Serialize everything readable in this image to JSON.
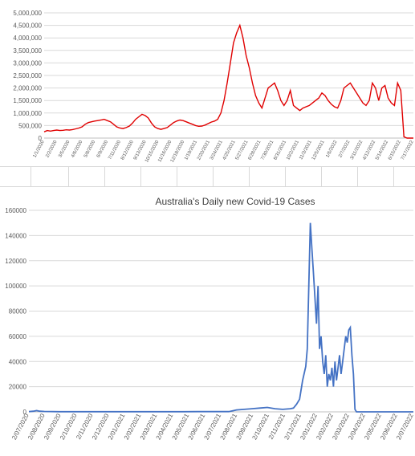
{
  "charts": [
    {
      "chart_data": {
        "type": "line",
        "title": "",
        "xlabel": "",
        "ylabel": "",
        "ylim": [
          0,
          5000000
        ],
        "y_ticks": [
          "0",
          "500,000",
          "1,000,000",
          "1,500,000",
          "2,000,000",
          "2,500,000",
          "3,000,000",
          "3,500,000",
          "4,000,000",
          "4,500,000",
          "5,000,000"
        ],
        "x_ticks": [
          "1/1/2020",
          "2/2/2020",
          "3/5/2020",
          "4/6/2020",
          "5/8/2020",
          "6/9/2020",
          "7/11/2020",
          "8/12/2020",
          "9/13/2020",
          "10/15/2020",
          "11/16/2020",
          "12/18/2020",
          "1/19/2021",
          "2/20/2021",
          "3/24/2021",
          "4/25/2021",
          "5/27/2021",
          "6/28/2021",
          "7/30/2021",
          "8/31/2021",
          "10/2/2021",
          "11/3/2021",
          "12/5/2021",
          "1/6/2022",
          "2/7/2022",
          "3/11/2022",
          "4/12/2022",
          "5/14/2022",
          "6/15/2022",
          "7/17/2022"
        ],
        "grid": true,
        "legend": "none",
        "color": "#e00000",
        "series": [
          {
            "x": [
              0,
              8,
              16,
              24,
              32,
              40,
              48,
              56,
              64,
              72,
              80,
              88,
              96,
              104,
              112,
              120,
              128,
              136,
              144,
              152,
              160,
              168,
              176,
              184,
              192,
              200,
              208,
              216,
              224,
              232,
              240,
              248,
              256,
              264,
              272,
              280,
              288,
              296,
              304,
              312,
              320,
              328,
              336,
              344,
              352,
              360,
              368,
              376,
              384,
              392,
              400,
              408,
              416,
              424,
              432,
              440,
              448,
              456,
              464,
              472,
              480,
              488,
              496,
              504,
              512,
              520,
              528,
              536,
              544,
              552,
              560,
              568,
              576,
              584,
              592,
              600,
              608,
              616,
              624,
              632,
              640,
              648,
              656,
              664,
              672,
              680,
              688,
              696,
              704,
              712,
              720,
              728,
              736,
              744,
              752,
              760,
              768,
              776,
              784,
              792,
              800,
              808,
              816,
              824,
              832,
              840,
              848,
              856,
              864,
              872,
              880,
              888,
              896,
              904,
              912,
              920,
              928,
              936
            ],
            "values": [
              250000,
              300000,
              280000,
              300000,
              320000,
              300000,
              310000,
              330000,
              320000,
              340000,
              370000,
              400000,
              450000,
              550000,
              620000,
              650000,
              680000,
              700000,
              720000,
              750000,
              700000,
              650000,
              550000,
              450000,
              400000,
              380000,
              420000,
              480000,
              600000,
              750000,
              850000,
              950000,
              900000,
              800000,
              600000,
              450000,
              380000,
              350000,
              380000,
              420000,
              520000,
              620000,
              680000,
              720000,
              700000,
              650000,
              600000,
              550000,
              500000,
              470000,
              480000,
              520000,
              580000,
              640000,
              680000,
              750000,
              1000000,
              1500000,
              2200000,
              3000000,
              3800000,
              4200000,
              4500000,
              4000000,
              3300000,
              2800000,
              2200000,
              1700000,
              1400000,
              1200000,
              1600000,
              2000000,
              2100000,
              2200000,
              1900000,
              1500000,
              1300000,
              1500000,
              1900000,
              1300000,
              1200000,
              1100000,
              1200000,
              1250000,
              1300000,
              1400000,
              1500000,
              1600000,
              1800000,
              1700000,
              1500000,
              1350000,
              1250000,
              1200000,
              1500000,
              2000000,
              2100000,
              2200000,
              2000000,
              1800000,
              1600000,
              1400000,
              1300000,
              1500000,
              2200000,
              2000000,
              1500000,
              2000000,
              2100000,
              1600000,
              1400000,
              1300000,
              2200000,
              1900000,
              50000,
              0,
              0,
              0
            ]
          }
        ]
      }
    },
    {
      "chart_data": {
        "type": "line",
        "title": "Australia's Daily new Covid-19 Cases",
        "xlabel": "",
        "ylabel": "",
        "ylim": [
          0,
          160000
        ],
        "y_ticks": [
          "0",
          "20000",
          "40000",
          "60000",
          "80000",
          "100000",
          "120000",
          "140000",
          "160000"
        ],
        "x_ticks": [
          "2/07/2020",
          "2/08/2020",
          "2/09/2020",
          "2/10/2020",
          "2/11/2020",
          "2/12/2020",
          "2/01/2021",
          "2/02/2021",
          "2/03/2021",
          "2/04/2021",
          "2/05/2021",
          "2/06/2021",
          "2/07/2021",
          "2/08/2021",
          "2/09/2021",
          "2/10/2021",
          "2/11/2021",
          "2/12/2021",
          "2/01/2022",
          "2/02/2022",
          "2/03/2022",
          "2/04/2022",
          "2/05/2022",
          "2/06/2022",
          "2/07/2022"
        ],
        "grid": true,
        "legend": "none",
        "color": "#4472c4",
        "series": [
          {
            "x": [
              0.0,
              0.3,
              0.5,
              0.7,
              1.0,
              2.0,
              3.0,
              4.0,
              5.0,
              6.0,
              7.0,
              8.0,
              9.0,
              10.0,
              11.0,
              12.0,
              13.0,
              13.5,
              14.0,
              14.5,
              15.0,
              15.5,
              16.0,
              16.5,
              17.0,
              17.2,
              17.4,
              17.6,
              17.8,
              18.0,
              18.1,
              18.2,
              18.3,
              18.4,
              18.5,
              18.6,
              18.7,
              18.8,
              18.9,
              19.0,
              19.1,
              19.2,
              19.3,
              19.4,
              19.5,
              19.6,
              19.7,
              19.8,
              19.9,
              20.0,
              20.1,
              20.2,
              20.3,
              20.4,
              20.5,
              20.6,
              20.7,
              20.8,
              20.9,
              21.0,
              21.1,
              21.2,
              21.3,
              21.4,
              21.5,
              21.6,
              21.7,
              21.8,
              21.9,
              22.0,
              22.5,
              23.0,
              23.5,
              24.0,
              24.5,
              25.0
            ],
            "values": [
              200,
              500,
              1000,
              500,
              300,
              100,
              100,
              100,
              100,
              100,
              100,
              100,
              100,
              100,
              200,
              200,
              200,
              1500,
              2000,
              2500,
              3000,
              3500,
              2500,
              2000,
              2500,
              3000,
              6000,
              10000,
              25000,
              36000,
              50000,
              100000,
              150000,
              130000,
              110000,
              90000,
              70000,
              100000,
              50000,
              60000,
              40000,
              30000,
              45000,
              20000,
              30000,
              25000,
              35000,
              20000,
              40000,
              25000,
              35000,
              45000,
              30000,
              40000,
              50000,
              60000,
              55000,
              65000,
              67000,
              45000,
              30000,
              2000,
              0,
              0,
              0,
              0,
              0,
              0,
              0,
              0,
              0,
              0,
              0,
              0,
              0,
              0
            ]
          }
        ]
      }
    }
  ]
}
